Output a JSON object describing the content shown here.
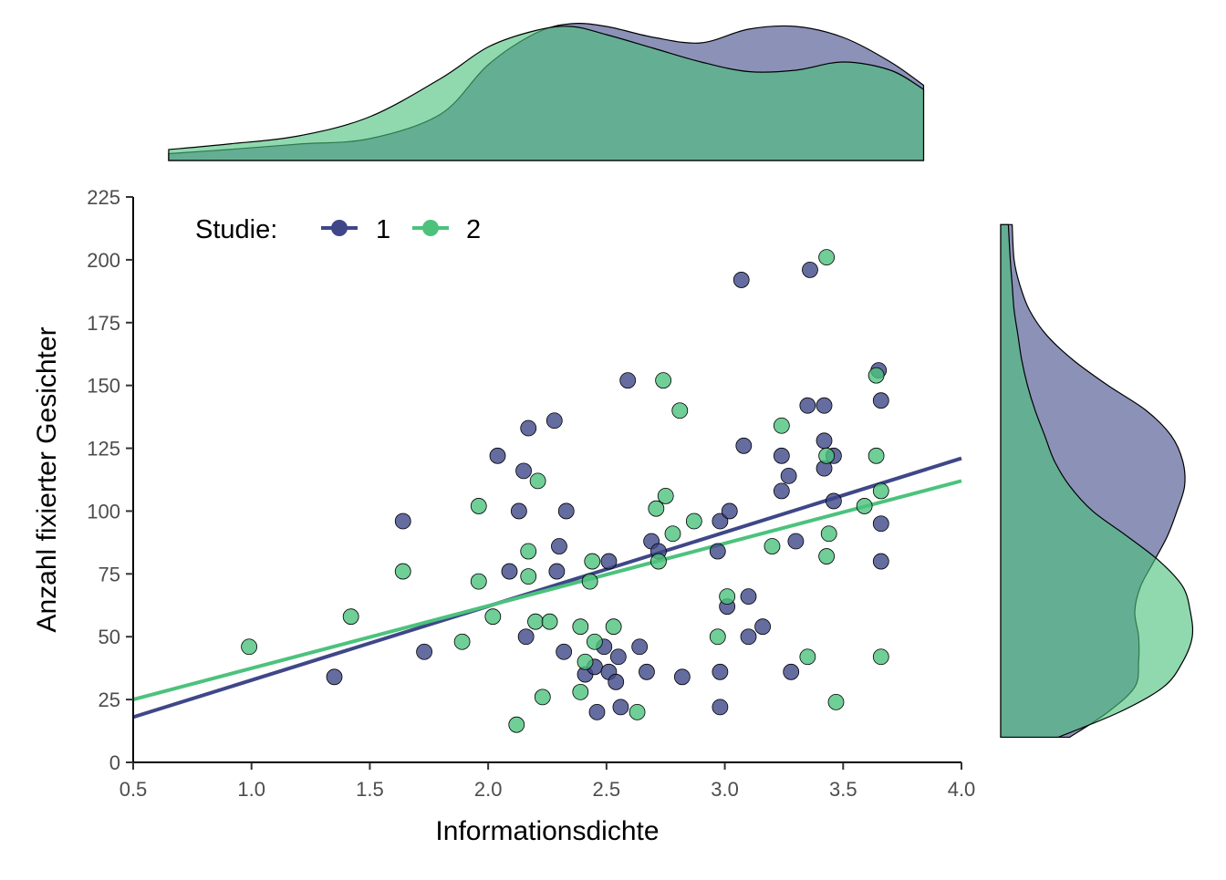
{
  "chart_data": {
    "type": "scatter",
    "title": "",
    "xlabel": "Informationsdichte",
    "ylabel": "Anzahl fixierter Gesichter",
    "xlim": [
      0.5,
      4.0
    ],
    "ylim": [
      0,
      225
    ],
    "x_ticks": [
      "0.5",
      "1.0",
      "1.5",
      "2.0",
      "2.5",
      "3.0",
      "3.5",
      "4.0"
    ],
    "y_ticks": [
      "0",
      "25",
      "50",
      "75",
      "100",
      "125",
      "150",
      "175",
      "200",
      "225"
    ],
    "grid": false,
    "legend": {
      "title": "Studie:",
      "placement": "top-left inside"
    },
    "colors": {
      "1": "#3f4788",
      "2": "#4cc27d"
    },
    "series": [
      {
        "name": "1",
        "points": [
          [
            1.35,
            34
          ],
          [
            1.64,
            96
          ],
          [
            1.73,
            44
          ],
          [
            2.04,
            122
          ],
          [
            2.09,
            76
          ],
          [
            2.13,
            100
          ],
          [
            2.15,
            116
          ],
          [
            2.16,
            50
          ],
          [
            2.17,
            133
          ],
          [
            2.28,
            136
          ],
          [
            2.29,
            76
          ],
          [
            2.3,
            86
          ],
          [
            2.32,
            44
          ],
          [
            2.33,
            100
          ],
          [
            2.41,
            35
          ],
          [
            2.45,
            38
          ],
          [
            2.46,
            20
          ],
          [
            2.49,
            46
          ],
          [
            2.51,
            36
          ],
          [
            2.51,
            80
          ],
          [
            2.54,
            32
          ],
          [
            2.55,
            42
          ],
          [
            2.56,
            22
          ],
          [
            2.59,
            152
          ],
          [
            2.64,
            46
          ],
          [
            2.67,
            36
          ],
          [
            2.69,
            88
          ],
          [
            2.72,
            84
          ],
          [
            2.82,
            34
          ],
          [
            2.97,
            84
          ],
          [
            2.98,
            22
          ],
          [
            2.98,
            36
          ],
          [
            2.98,
            96
          ],
          [
            3.01,
            62
          ],
          [
            3.02,
            100
          ],
          [
            3.07,
            192
          ],
          [
            3.08,
            126
          ],
          [
            3.1,
            66
          ],
          [
            3.1,
            50
          ],
          [
            3.16,
            54
          ],
          [
            3.24,
            108
          ],
          [
            3.24,
            122
          ],
          [
            3.27,
            114
          ],
          [
            3.28,
            36
          ],
          [
            3.3,
            88
          ],
          [
            3.35,
            142
          ],
          [
            3.36,
            196
          ],
          [
            3.42,
            142
          ],
          [
            3.42,
            117
          ],
          [
            3.42,
            128
          ],
          [
            3.46,
            104
          ],
          [
            3.46,
            122
          ],
          [
            3.65,
            156
          ],
          [
            3.66,
            95
          ],
          [
            3.66,
            144
          ],
          [
            3.66,
            80
          ]
        ],
        "fit": {
          "x": [
            0.5,
            4.0
          ],
          "y": [
            18,
            121
          ]
        }
      },
      {
        "name": "2",
        "points": [
          [
            0.99,
            46
          ],
          [
            1.42,
            58
          ],
          [
            1.64,
            76
          ],
          [
            1.89,
            48
          ],
          [
            1.96,
            102
          ],
          [
            1.96,
            72
          ],
          [
            2.02,
            58
          ],
          [
            2.12,
            15
          ],
          [
            2.17,
            74
          ],
          [
            2.17,
            84
          ],
          [
            2.2,
            56
          ],
          [
            2.21,
            112
          ],
          [
            2.23,
            26
          ],
          [
            2.26,
            56
          ],
          [
            2.39,
            28
          ],
          [
            2.39,
            54
          ],
          [
            2.41,
            40
          ],
          [
            2.43,
            72
          ],
          [
            2.44,
            80
          ],
          [
            2.45,
            48
          ],
          [
            2.53,
            54
          ],
          [
            2.63,
            20
          ],
          [
            2.71,
            101
          ],
          [
            2.72,
            80
          ],
          [
            2.74,
            152
          ],
          [
            2.75,
            106
          ],
          [
            2.78,
            91
          ],
          [
            2.81,
            140
          ],
          [
            2.87,
            96
          ],
          [
            2.97,
            50
          ],
          [
            3.01,
            66
          ],
          [
            3.2,
            86
          ],
          [
            3.24,
            134
          ],
          [
            3.35,
            42
          ],
          [
            3.43,
            122
          ],
          [
            3.43,
            82
          ],
          [
            3.43,
            201
          ],
          [
            3.44,
            91
          ],
          [
            3.47,
            24
          ],
          [
            3.59,
            102
          ],
          [
            3.64,
            122
          ],
          [
            3.64,
            154
          ],
          [
            3.66,
            108
          ],
          [
            3.66,
            42
          ]
        ],
        "fit": {
          "x": [
            0.5,
            4.0
          ],
          "y": [
            25,
            112
          ]
        }
      }
    ],
    "marginal_density": {
      "top": {
        "axis": "x",
        "x": [
          0.65,
          0.9,
          1.2,
          1.5,
          1.8,
          2.0,
          2.2,
          2.35,
          2.5,
          2.7,
          2.9,
          3.1,
          3.3,
          3.5,
          3.7,
          3.84
        ],
        "series": [
          {
            "name": "1",
            "density": [
              0.05,
              0.08,
              0.12,
              0.16,
              0.34,
              0.7,
              0.93,
              1.0,
              0.98,
              0.9,
              0.86,
              0.96,
              0.98,
              0.9,
              0.72,
              0.55
            ]
          },
          {
            "name": "2",
            "density": [
              0.08,
              0.12,
              0.18,
              0.32,
              0.6,
              0.83,
              0.95,
              0.98,
              0.92,
              0.82,
              0.72,
              0.65,
              0.66,
              0.72,
              0.66,
              0.52
            ]
          }
        ]
      },
      "right": {
        "axis": "y",
        "y": [
          10,
          20,
          30,
          40,
          50,
          60,
          70,
          80,
          90,
          100,
          110,
          120,
          130,
          140,
          150,
          160,
          170,
          180,
          190,
          200,
          214
        ],
        "series": [
          {
            "name": "1",
            "density": [
              0.36,
              0.56,
              0.7,
              0.72,
              0.72,
              0.7,
              0.73,
              0.8,
              0.87,
              0.92,
              0.96,
              0.95,
              0.89,
              0.76,
              0.56,
              0.38,
              0.24,
              0.15,
              0.1,
              0.07,
              0.06
            ]
          },
          {
            "name": "2",
            "density": [
              0.3,
              0.62,
              0.85,
              0.95,
              1.0,
              0.99,
              0.95,
              0.83,
              0.66,
              0.48,
              0.36,
              0.28,
              0.23,
              0.18,
              0.14,
              0.11,
              0.09,
              0.07,
              0.06,
              0.05,
              0.04
            ]
          }
        ]
      }
    }
  }
}
